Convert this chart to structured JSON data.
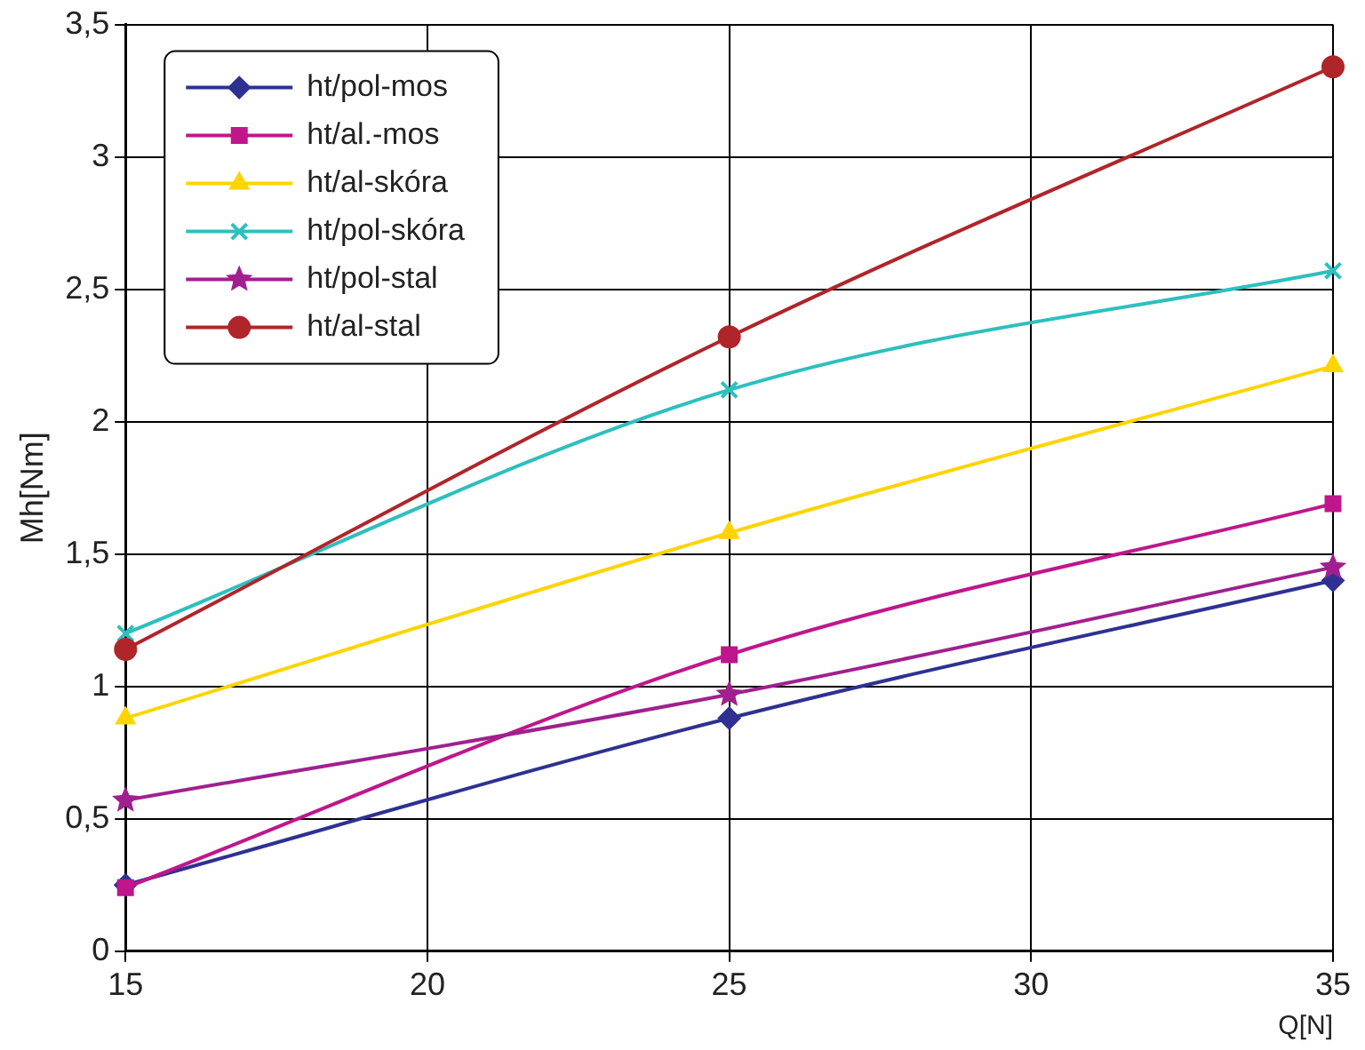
{
  "chart_data": {
    "type": "line",
    "xlabel": "Q[N]",
    "ylabel": "Mh[Nm]",
    "x": [
      15,
      25,
      35
    ],
    "xlim": [
      15,
      35
    ],
    "xticks": [
      15,
      20,
      25,
      30,
      35
    ],
    "ylim": [
      0,
      3.5
    ],
    "yticks": [
      0,
      {
        "value": 0.5,
        "label": "0,5"
      },
      1,
      {
        "value": 1.5,
        "label": "1,5"
      },
      2,
      {
        "value": 2.5,
        "label": "2,5"
      },
      3,
      {
        "value": 3.5,
        "label": "3,5"
      }
    ],
    "grid": true,
    "legend": "top left",
    "line_style": "solid",
    "series": [
      {
        "name": "ht/pol-mos",
        "color": "#2e3192",
        "marker": "diamond",
        "values": [
          0.25,
          0.88,
          1.4
        ]
      },
      {
        "name": "ht/al.-mos",
        "color": "#c0168c",
        "marker": "square",
        "values": [
          0.24,
          1.12,
          1.69
        ]
      },
      {
        "name": "ht/al-skóra",
        "color": "#ffd400",
        "marker": "triangle",
        "values": [
          0.88,
          1.58,
          2.21
        ]
      },
      {
        "name": "ht/pol-skóra",
        "color": "#2ebfbf",
        "marker": "cross",
        "values": [
          1.2,
          2.12,
          2.57
        ]
      },
      {
        "name": "ht/pol-stal",
        "color": "#a0208f",
        "marker": "star",
        "values": [
          0.57,
          0.97,
          1.45
        ]
      },
      {
        "name": "ht/al-stal",
        "color": "#b0252a",
        "marker": "circle",
        "values": [
          1.14,
          2.32,
          3.34
        ]
      }
    ]
  }
}
